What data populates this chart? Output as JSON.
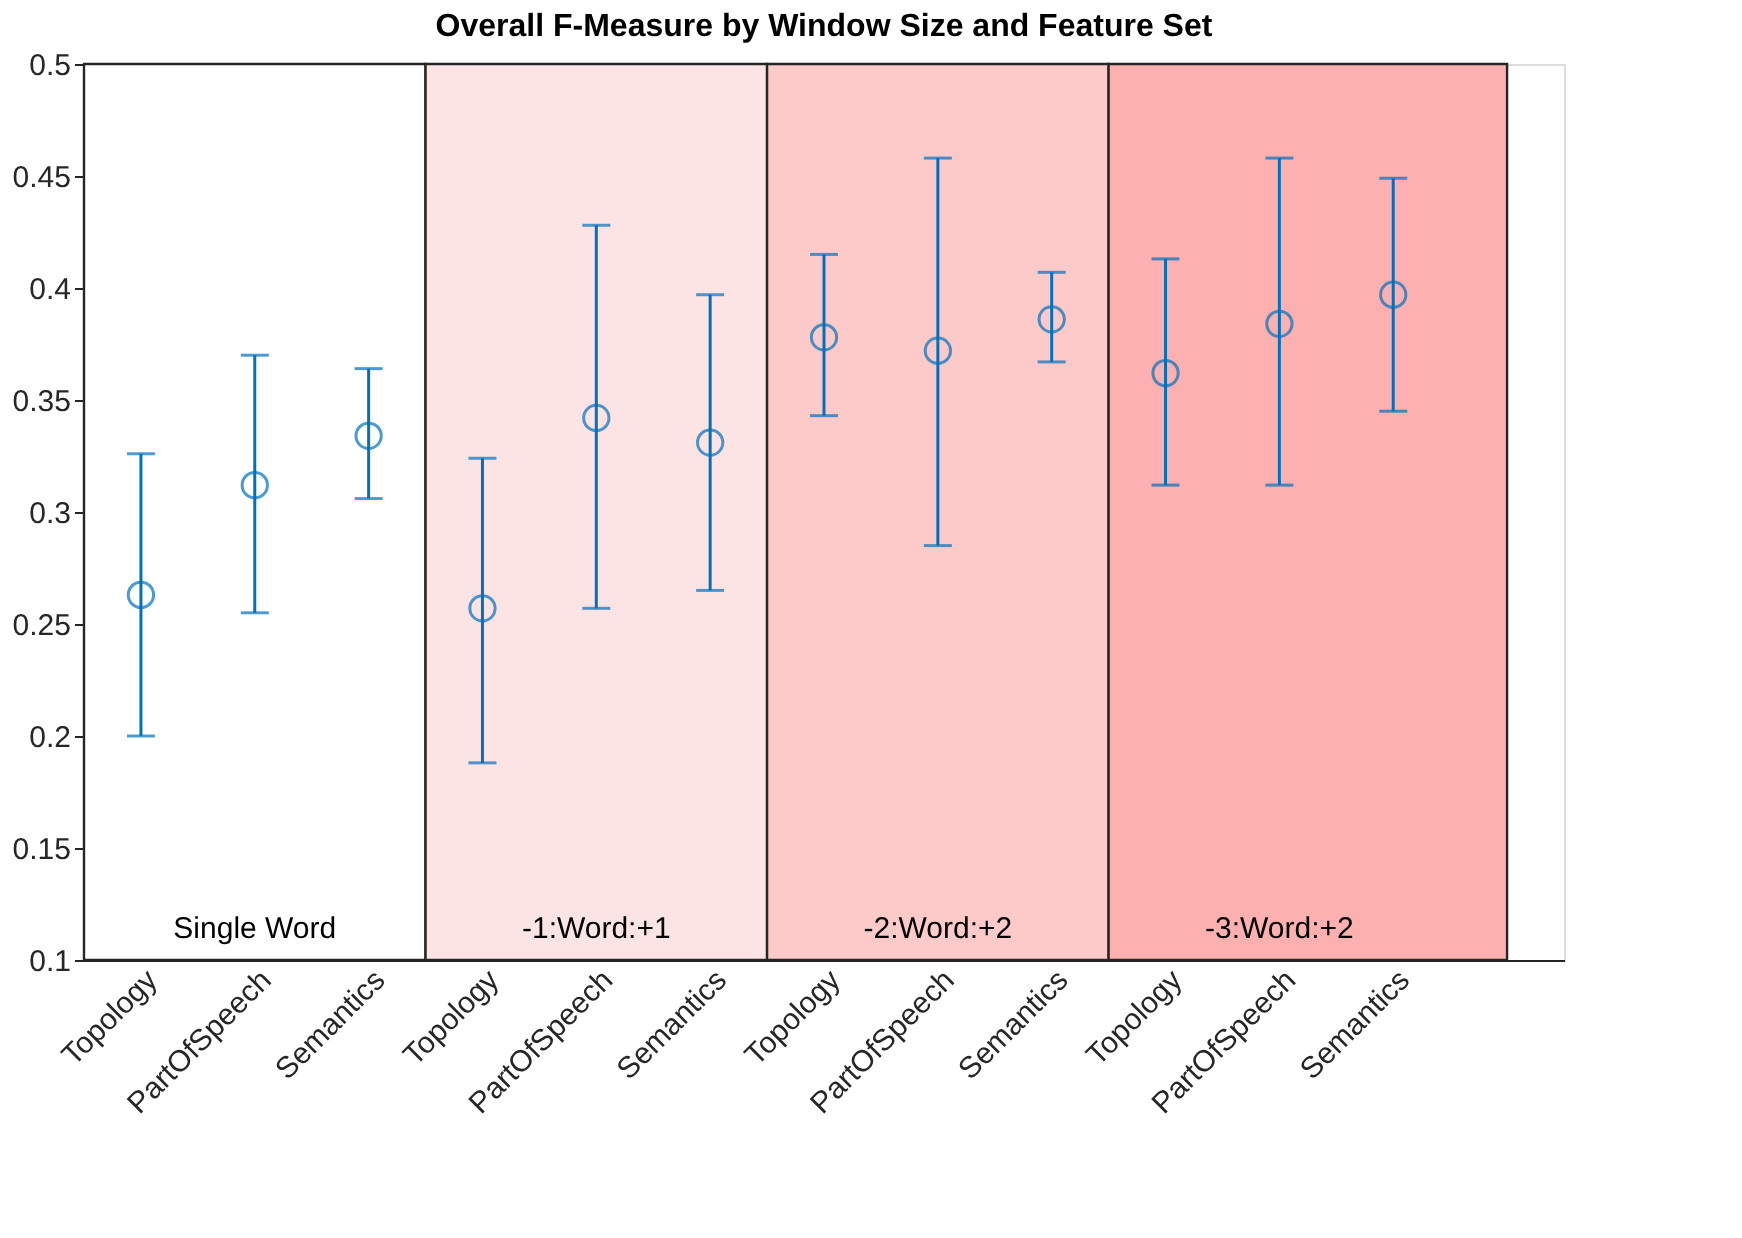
{
  "chart_data": {
    "type": "scatter",
    "title": "Overall F-Measure by Window Size and Feature Set",
    "categories": [
      "Topology",
      "PartOfSpeech",
      "Semantics",
      "Topology",
      "PartOfSpeech",
      "Semantics",
      "Topology",
      "PartOfSpeech",
      "Semantics",
      "Topology",
      "PartOfSpeech",
      "Semantics"
    ],
    "series": [
      {
        "color": "#0072bd",
        "values": [
          0.263,
          0.312,
          0.334,
          0.257,
          0.342,
          0.331,
          0.378,
          0.372,
          0.386,
          0.362,
          0.384,
          0.397
        ],
        "errors": [
          [
            0.2,
            0.326
          ],
          [
            0.255,
            0.37
          ],
          [
            0.306,
            0.364
          ],
          [
            0.188,
            0.324
          ],
          [
            0.257,
            0.428
          ],
          [
            0.265,
            0.397
          ],
          [
            0.343,
            0.415
          ],
          [
            0.285,
            0.458
          ],
          [
            0.367,
            0.407
          ],
          [
            0.312,
            0.413
          ],
          [
            0.312,
            0.458
          ],
          [
            0.345,
            0.449
          ]
        ]
      }
    ],
    "ylim": [
      0.1,
      0.5
    ],
    "yticks": [
      {
        "value": 0.1,
        "label": "0.1"
      },
      0.15,
      {
        "value": 0.2,
        "label": "0.2"
      },
      0.25,
      {
        "value": 0.3,
        "label": "0.3"
      },
      0.35,
      {
        "value": 0.4,
        "label": "0.4"
      },
      0.45,
      {
        "value": 0.5,
        "label": "0.5"
      }
    ],
    "annotations": [
      "Single Word",
      "-1:Word:+1",
      "-2:Word:+2",
      "-3:Word:+2"
    ],
    "marker": "circle",
    "grid": false
  }
}
